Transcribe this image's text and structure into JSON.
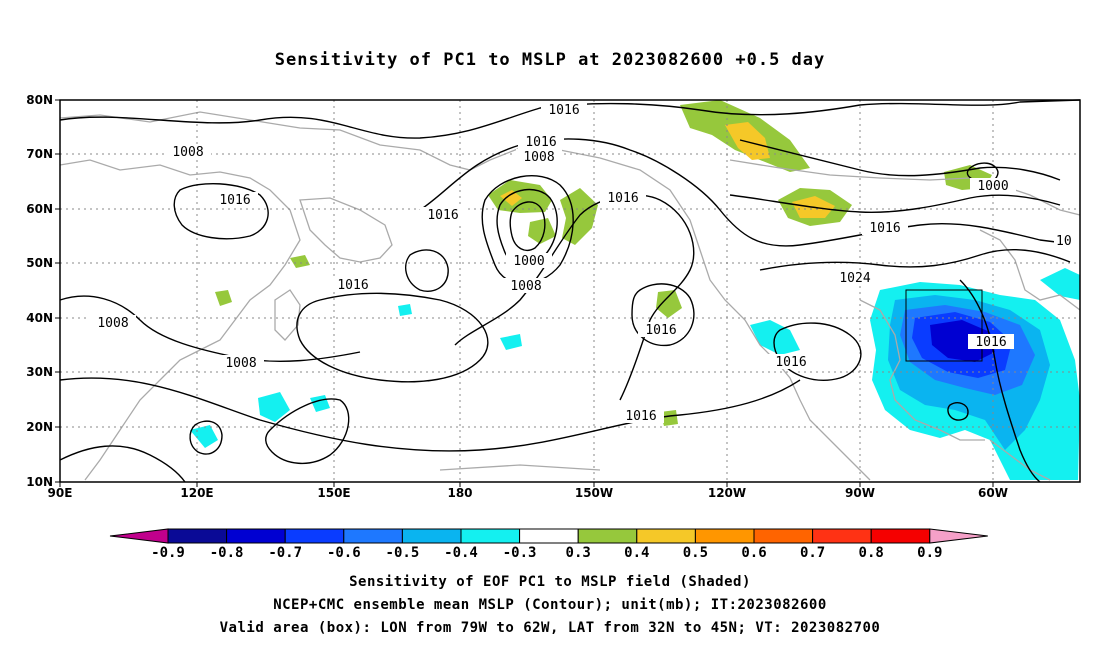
{
  "title": "Sensitivity of PC1 to MSLP at 2023082600 +0.5 day",
  "axes": {
    "lat_ticks": [
      "80N",
      "70N",
      "60N",
      "50N",
      "40N",
      "30N",
      "20N",
      "10N"
    ],
    "lon_ticks": [
      "90E",
      "120E",
      "150E",
      "180",
      "150W",
      "120W",
      "90W",
      "60W"
    ]
  },
  "contour_labels": [
    {
      "text": "1016"
    },
    {
      "text": "1016"
    },
    {
      "text": "1008"
    },
    {
      "text": "1008"
    },
    {
      "text": "1016"
    },
    {
      "text": "1016"
    },
    {
      "text": "1016"
    },
    {
      "text": "1000"
    },
    {
      "text": "1008"
    },
    {
      "text": "1016"
    },
    {
      "text": "1008"
    },
    {
      "text": "1016"
    },
    {
      "text": "1008"
    },
    {
      "text": "1000"
    },
    {
      "text": "1016"
    },
    {
      "text": "1024"
    },
    {
      "text": "1016"
    },
    {
      "text": "1016"
    },
    {
      "text": "1016"
    },
    {
      "text": "10"
    }
  ],
  "colorbar": {
    "labels": [
      "-0.9",
      "-0.8",
      "-0.7",
      "-0.6",
      "-0.5",
      "-0.4",
      "-0.3",
      "0.3",
      "0.4",
      "0.5",
      "0.6",
      "0.7",
      "0.8",
      "0.9"
    ],
    "low_arrow_color": "#c0008c",
    "high_arrow_color": "#f5a0c8",
    "colors": [
      "#0a0a96",
      "#0000d2",
      "#0a3cff",
      "#1e78ff",
      "#0ab4f0",
      "#14f0f0",
      "#ffffff",
      "#96c83c",
      "#f5c828",
      "#ff9600",
      "#ff6400",
      "#ff3214",
      "#f50000"
    ]
  },
  "captions": [
    "Sensitivity of EOF PC1 to MSLP field (Shaded)",
    "NCEP+CMC ensemble mean MSLP (Contour); unit(mb); IT:2023082600",
    "Valid area (box): LON from 79W to 62W, LAT from 32N to 45N; VT: 2023082700"
  ]
}
